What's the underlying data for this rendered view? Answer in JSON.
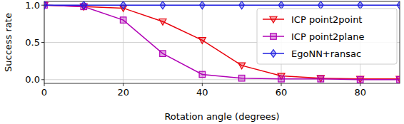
{
  "chart_data": {
    "type": "line",
    "x_label": "Rotation angle (degrees)",
    "y_label": "Success rate",
    "x": [
      0,
      10,
      20,
      30,
      40,
      50,
      60,
      70,
      80,
      90
    ],
    "series": [
      {
        "name": "ICP point2point",
        "color": "#e8000b",
        "marker": "triangle-down",
        "values": [
          1.0,
          0.98,
          0.96,
          0.78,
          0.53,
          0.19,
          0.05,
          0.02,
          0.01,
          0.01
        ]
      },
      {
        "name": "ICP point2plane",
        "color": "#b000b5",
        "marker": "square",
        "values": [
          1.0,
          0.98,
          0.8,
          0.35,
          0.07,
          0.02,
          0.01,
          0.01,
          0.0,
          0.0
        ]
      },
      {
        "name": "EgoNN+ransac",
        "color": "#1f1fe0",
        "marker": "diamond",
        "values": [
          1.0,
          1.0,
          1.0,
          1.0,
          1.0,
          1.0,
          1.0,
          1.0,
          1.0,
          1.0
        ]
      }
    ],
    "xlim": [
      0,
      90
    ],
    "xticks": [
      0,
      20,
      40,
      60,
      80
    ],
    "ylim": [
      -0.05,
      1.05
    ],
    "yticks": [
      {
        "value": 0,
        "label": "0.0"
      },
      {
        "value": 0.5,
        "label": "0.5"
      },
      {
        "value": 1,
        "label": "1.0"
      }
    ],
    "grid": true,
    "legend": "upper right"
  }
}
